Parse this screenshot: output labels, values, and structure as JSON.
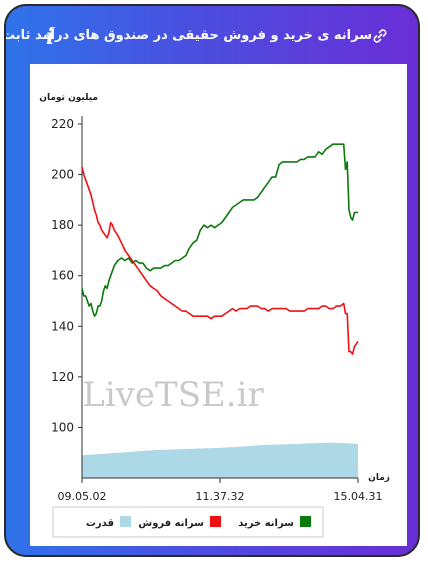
{
  "header": {
    "title": "سرانه ی خرید و فروش حقیقی در صندوق های درآمد ثابت",
    "link_icon": "link-icon",
    "info_icon": "info-icon",
    "info_symbol": "i"
  },
  "chart_data": {
    "type": "line",
    "ylabel": "میلیون تومان",
    "xlabel": "زمان",
    "y_ticks": [
      "100",
      "120",
      "140",
      "160",
      "180",
      "200",
      "220"
    ],
    "ylim": [
      80,
      220
    ],
    "x_ticks": [
      "09.05.02",
      "11.37.32",
      "15.04.31"
    ],
    "watermark": "LiveTSE.ir",
    "grid": false,
    "legend_position": "bottom",
    "series": [
      {
        "name": "سرانه خرید",
        "color": "#0a7a0a",
        "values": [
          [
            0,
            155
          ],
          [
            0.5,
            152
          ],
          [
            1,
            152
          ],
          [
            1.5,
            150
          ],
          [
            2,
            148
          ],
          [
            2.5,
            149
          ],
          [
            3,
            146
          ],
          [
            3.5,
            144
          ],
          [
            4,
            145
          ],
          [
            4.5,
            148
          ],
          [
            5,
            148
          ],
          [
            5.5,
            150
          ],
          [
            6,
            154
          ],
          [
            6.5,
            156
          ],
          [
            7,
            155
          ],
          [
            7.5,
            158
          ],
          [
            8,
            160
          ],
          [
            8.5,
            162
          ],
          [
            9,
            164
          ],
          [
            10,
            166
          ],
          [
            11,
            167
          ],
          [
            12,
            166
          ],
          [
            13,
            167
          ],
          [
            14,
            165
          ],
          [
            15,
            166
          ],
          [
            16,
            165
          ],
          [
            17,
            165
          ],
          [
            18,
            163
          ],
          [
            19,
            162
          ],
          [
            20,
            163
          ],
          [
            21,
            163
          ],
          [
            22,
            163
          ],
          [
            23,
            164
          ],
          [
            24,
            164
          ],
          [
            25,
            165
          ],
          [
            26,
            166
          ],
          [
            27,
            166
          ],
          [
            28,
            167
          ],
          [
            29,
            168
          ],
          [
            30,
            171
          ],
          [
            31,
            173
          ],
          [
            32,
            174
          ],
          [
            33,
            178
          ],
          [
            34,
            180
          ],
          [
            35,
            179
          ],
          [
            36,
            180
          ],
          [
            37,
            179
          ],
          [
            38,
            180
          ],
          [
            39,
            181
          ],
          [
            40,
            183
          ],
          [
            41,
            185
          ],
          [
            42,
            187
          ],
          [
            43,
            188
          ],
          [
            44,
            189
          ],
          [
            45,
            190
          ],
          [
            46,
            190
          ],
          [
            47,
            190
          ],
          [
            48,
            190
          ],
          [
            49,
            191
          ],
          [
            50,
            193
          ],
          [
            51,
            195
          ],
          [
            52,
            197
          ],
          [
            53,
            199
          ],
          [
            54,
            199
          ],
          [
            55,
            204
          ],
          [
            56,
            205
          ],
          [
            57,
            205
          ],
          [
            58,
            205
          ],
          [
            59,
            205
          ],
          [
            60,
            205
          ],
          [
            61,
            206
          ],
          [
            62,
            206
          ],
          [
            63,
            207
          ],
          [
            64,
            207
          ],
          [
            65,
            207
          ],
          [
            66,
            209
          ],
          [
            67,
            208
          ],
          [
            68,
            210
          ],
          [
            69,
            211
          ],
          [
            70,
            212
          ],
          [
            71,
            212
          ],
          [
            72,
            212
          ],
          [
            73,
            212
          ],
          [
            73.5,
            202
          ],
          [
            74,
            205
          ],
          [
            74.5,
            186
          ],
          [
            75,
            183
          ],
          [
            75.5,
            182
          ],
          [
            76,
            185
          ],
          [
            77,
            185
          ]
        ]
      },
      {
        "name": "سرانه فروش",
        "color": "#ee1111",
        "values": [
          [
            0,
            203
          ],
          [
            0.5,
            200
          ],
          [
            1,
            198
          ],
          [
            1.5,
            196
          ],
          [
            2,
            194
          ],
          [
            2.5,
            192
          ],
          [
            3,
            189
          ],
          [
            3.5,
            186
          ],
          [
            4,
            184
          ],
          [
            4.5,
            181
          ],
          [
            5,
            180
          ],
          [
            5.5,
            178
          ],
          [
            6,
            177
          ],
          [
            6.5,
            176
          ],
          [
            7,
            175
          ],
          [
            7.5,
            177
          ],
          [
            8,
            181
          ],
          [
            8.5,
            180
          ],
          [
            9,
            178
          ],
          [
            10,
            176
          ],
          [
            11,
            173
          ],
          [
            12,
            170
          ],
          [
            13,
            168
          ],
          [
            14,
            166
          ],
          [
            15,
            164
          ],
          [
            16,
            162
          ],
          [
            17,
            160
          ],
          [
            18,
            158
          ],
          [
            19,
            156
          ],
          [
            20,
            155
          ],
          [
            21,
            154
          ],
          [
            22,
            152
          ],
          [
            23,
            151
          ],
          [
            24,
            150
          ],
          [
            25,
            149
          ],
          [
            26,
            148
          ],
          [
            27,
            147
          ],
          [
            28,
            146
          ],
          [
            29,
            146
          ],
          [
            30,
            145
          ],
          [
            31,
            144
          ],
          [
            32,
            144
          ],
          [
            33,
            144
          ],
          [
            34,
            144
          ],
          [
            35,
            144
          ],
          [
            36,
            143
          ],
          [
            37,
            144
          ],
          [
            38,
            144
          ],
          [
            39,
            144
          ],
          [
            40,
            145
          ],
          [
            41,
            146
          ],
          [
            42,
            147
          ],
          [
            43,
            146
          ],
          [
            44,
            147
          ],
          [
            45,
            147
          ],
          [
            46,
            147
          ],
          [
            47,
            148
          ],
          [
            48,
            148
          ],
          [
            49,
            148
          ],
          [
            50,
            147
          ],
          [
            51,
            147
          ],
          [
            52,
            146
          ],
          [
            53,
            147
          ],
          [
            54,
            147
          ],
          [
            55,
            147
          ],
          [
            56,
            147
          ],
          [
            57,
            147
          ],
          [
            58,
            146
          ],
          [
            59,
            146
          ],
          [
            60,
            146
          ],
          [
            61,
            146
          ],
          [
            62,
            146
          ],
          [
            63,
            147
          ],
          [
            64,
            147
          ],
          [
            65,
            147
          ],
          [
            66,
            147
          ],
          [
            67,
            148
          ],
          [
            68,
            148
          ],
          [
            69,
            147
          ],
          [
            70,
            147
          ],
          [
            71,
            148
          ],
          [
            72,
            148
          ],
          [
            73,
            149
          ],
          [
            73.5,
            145
          ],
          [
            74,
            145
          ],
          [
            74.5,
            130
          ],
          [
            75,
            130
          ],
          [
            75.5,
            129
          ],
          [
            76,
            132
          ],
          [
            77,
            134
          ]
        ]
      },
      {
        "name": "قدرت",
        "color": "#add8e6",
        "type": "area",
        "values": [
          [
            0,
            89
          ],
          [
            10,
            90
          ],
          [
            20,
            91
          ],
          [
            30,
            91.5
          ],
          [
            40,
            92
          ],
          [
            50,
            93
          ],
          [
            60,
            93.5
          ],
          [
            70,
            94
          ],
          [
            77,
            93.5
          ]
        ]
      }
    ],
    "legend": [
      {
        "label": "سرانه خرید",
        "color": "#0a7a0a"
      },
      {
        "label": "سرانه فروش",
        "color": "#ee1111"
      },
      {
        "label": "قدرت",
        "color": "#add8e6"
      }
    ],
    "x_range": [
      0,
      77
    ]
  },
  "colors": {
    "gradient_start": "#2f73ea",
    "gradient_end": "#6a2ed6",
    "buy": "#0a7a0a",
    "sell": "#ee1111",
    "power": "#add8e6"
  }
}
